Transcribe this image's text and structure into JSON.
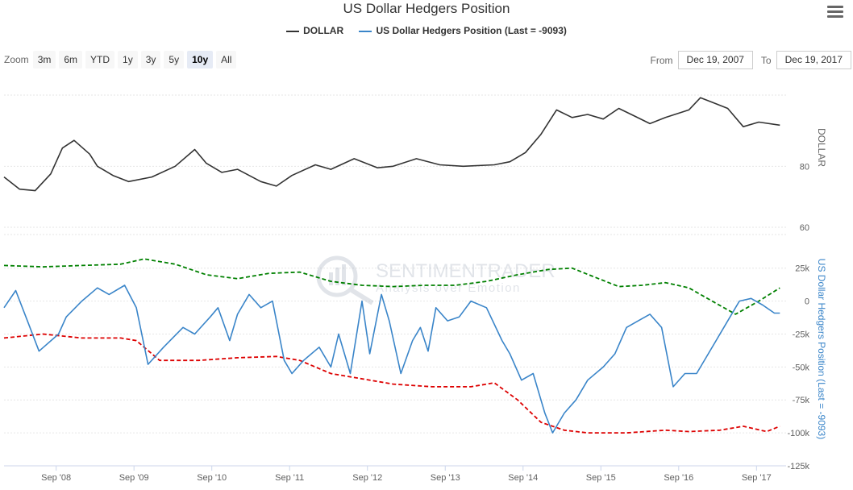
{
  "title": "US Dollar Hedgers Position",
  "menu_icon": "hamburger-menu-icon",
  "legend": [
    {
      "label": "DOLLAR",
      "color": "#333333"
    },
    {
      "label": "US Dollar Hedgers Position (Last = -9093)",
      "color": "#3a85c9"
    }
  ],
  "zoom": {
    "label": "Zoom",
    "buttons": [
      "3m",
      "6m",
      "YTD",
      "1y",
      "3y",
      "5y",
      "10y",
      "All"
    ],
    "active": "10y"
  },
  "range": {
    "from_label": "From",
    "from_value": "Dec 19, 2007",
    "to_label": "To",
    "to_value": "Dec 19, 2017"
  },
  "watermark": {
    "line1": "SENTIMENTRADER",
    "line2": "Analysis over Emotion"
  },
  "chart_data": [
    {
      "type": "line",
      "series": [
        {
          "name": "DOLLAR",
          "color": "#333333",
          "x": [
            2008.0,
            2008.2,
            2008.4,
            2008.6,
            2008.75,
            2008.9,
            2009.1,
            2009.2,
            2009.4,
            2009.6,
            2009.9,
            2010.2,
            2010.45,
            2010.6,
            2010.8,
            2011.0,
            2011.3,
            2011.5,
            2011.7,
            2012.0,
            2012.2,
            2012.5,
            2012.8,
            2013.0,
            2013.3,
            2013.6,
            2013.9,
            2014.3,
            2014.5,
            2014.7,
            2014.9,
            2015.1,
            2015.3,
            2015.5,
            2015.7,
            2015.9,
            2016.1,
            2016.3,
            2016.5,
            2016.8,
            2016.95,
            2017.1,
            2017.3,
            2017.5,
            2017.7,
            2017.97
          ],
          "y": [
            76.5,
            72.5,
            72.0,
            77.5,
            86.0,
            88.5,
            84.0,
            80.0,
            77.0,
            75.0,
            76.5,
            80.0,
            85.5,
            81.0,
            78.0,
            79.0,
            75.0,
            73.5,
            77.0,
            80.5,
            79.0,
            82.5,
            79.5,
            80.0,
            82.5,
            80.5,
            80.0,
            80.5,
            81.5,
            84.5,
            90.5,
            98.5,
            96.0,
            97.0,
            95.5,
            99.0,
            96.5,
            94.0,
            96.0,
            98.5,
            102.5,
            101.0,
            99.0,
            93.0,
            94.5,
            93.5
          ],
          "ylabel": "DOLLAR",
          "yticks": [
            60,
            80
          ],
          "ylim": [
            60,
            106
          ]
        }
      ]
    },
    {
      "type": "line",
      "ylabel": "US Dollar Hedgers Position (Last = -9093)",
      "yticks": [
        25000,
        0,
        -25000,
        -50000,
        -75000,
        -100000,
        -125000
      ],
      "ytick_labels": [
        "25k",
        "0",
        "-25k",
        "-50k",
        "-75k",
        "-100k",
        "-125k"
      ],
      "ylim": [
        -125000,
        45000
      ],
      "xtick_labels": [
        "Sep '08",
        "Sep '09",
        "Sep '10",
        "Sep '11",
        "Sep '12",
        "Sep '13",
        "Sep '14",
        "Sep '15",
        "Sep '16",
        "Sep '17"
      ],
      "xticks": [
        2008.67,
        2009.67,
        2010.67,
        2011.67,
        2012.67,
        2013.67,
        2014.67,
        2015.67,
        2016.67,
        2017.67
      ],
      "xlim": [
        2008.0,
        2018.05
      ],
      "series": [
        {
          "color": "#3a85c9",
          "style": "solid",
          "x": [
            2008.0,
            2008.15,
            2008.3,
            2008.45,
            2008.7,
            2008.8,
            2009.0,
            2009.2,
            2009.35,
            2009.55,
            2009.7,
            2009.85,
            2010.05,
            2010.3,
            2010.45,
            2010.65,
            2010.75,
            2010.9,
            2011.0,
            2011.15,
            2011.3,
            2011.45,
            2011.6,
            2011.7,
            2011.85,
            2012.05,
            2012.2,
            2012.3,
            2012.45,
            2012.6,
            2012.7,
            2012.85,
            2012.95,
            2013.1,
            2013.25,
            2013.35,
            2013.45,
            2013.55,
            2013.7,
            2013.85,
            2014.0,
            2014.2,
            2014.4,
            2014.5,
            2014.65,
            2014.8,
            2014.95,
            2015.05,
            2015.2,
            2015.35,
            2015.5,
            2015.7,
            2015.85,
            2016.0,
            2016.15,
            2016.3,
            2016.45,
            2016.6,
            2016.75,
            2016.9,
            2017.05,
            2017.25,
            2017.45,
            2017.6,
            2017.75,
            2017.9,
            2017.97
          ],
          "y": [
            -5000,
            8000,
            -15000,
            -38000,
            -25000,
            -12000,
            0,
            10000,
            5000,
            12000,
            -5000,
            -48000,
            -35000,
            -20000,
            -25000,
            -12000,
            -5000,
            -30000,
            -10000,
            5000,
            -5000,
            0,
            -45000,
            -55000,
            -45000,
            -35000,
            -50000,
            -25000,
            -55000,
            0,
            -40000,
            5000,
            -15000,
            -55000,
            -30000,
            -20000,
            -38000,
            -5000,
            -15000,
            -12000,
            0,
            -5000,
            -30000,
            -40000,
            -60000,
            -55000,
            -85000,
            -100000,
            -85000,
            -75000,
            -60000,
            -50000,
            -40000,
            -20000,
            -15000,
            -10000,
            -20000,
            -65000,
            -55000,
            -55000,
            -40000,
            -20000,
            0,
            2000,
            -3000,
            -9093,
            -9093
          ]
        },
        {
          "color": "#008000",
          "style": "dashed",
          "x": [
            2008.0,
            2008.5,
            2009.0,
            2009.5,
            2009.8,
            2010.2,
            2010.6,
            2011.0,
            2011.4,
            2011.8,
            2012.2,
            2012.6,
            2013.0,
            2013.4,
            2013.8,
            2014.2,
            2014.6,
            2015.0,
            2015.3,
            2015.6,
            2015.9,
            2016.2,
            2016.5,
            2016.8,
            2017.1,
            2017.4,
            2017.7,
            2017.97
          ],
          "y": [
            27000,
            26000,
            27000,
            28000,
            32000,
            28000,
            20000,
            17000,
            21000,
            22000,
            15000,
            12000,
            11000,
            12000,
            12000,
            15000,
            20000,
            24000,
            25000,
            18000,
            11000,
            12000,
            14000,
            10000,
            0,
            -10000,
            0,
            10000
          ]
        },
        {
          "color": "#dd0000",
          "style": "dashed",
          "x": [
            2008.0,
            2008.5,
            2009.0,
            2009.5,
            2009.7,
            2010.0,
            2010.5,
            2011.0,
            2011.5,
            2011.8,
            2012.2,
            2012.5,
            2013.0,
            2013.5,
            2014.0,
            2014.3,
            2014.6,
            2014.9,
            2015.2,
            2015.5,
            2016.0,
            2016.5,
            2016.8,
            2017.2,
            2017.5,
            2017.8,
            2017.97
          ],
          "y": [
            -28000,
            -25000,
            -28000,
            -28000,
            -30000,
            -45000,
            -45000,
            -43000,
            -42000,
            -45000,
            -55000,
            -58000,
            -63000,
            -65000,
            -65000,
            -62000,
            -75000,
            -92000,
            -98000,
            -100000,
            -100000,
            -98000,
            -99000,
            -98000,
            -95000,
            -99000,
            -95000
          ]
        }
      ]
    }
  ]
}
